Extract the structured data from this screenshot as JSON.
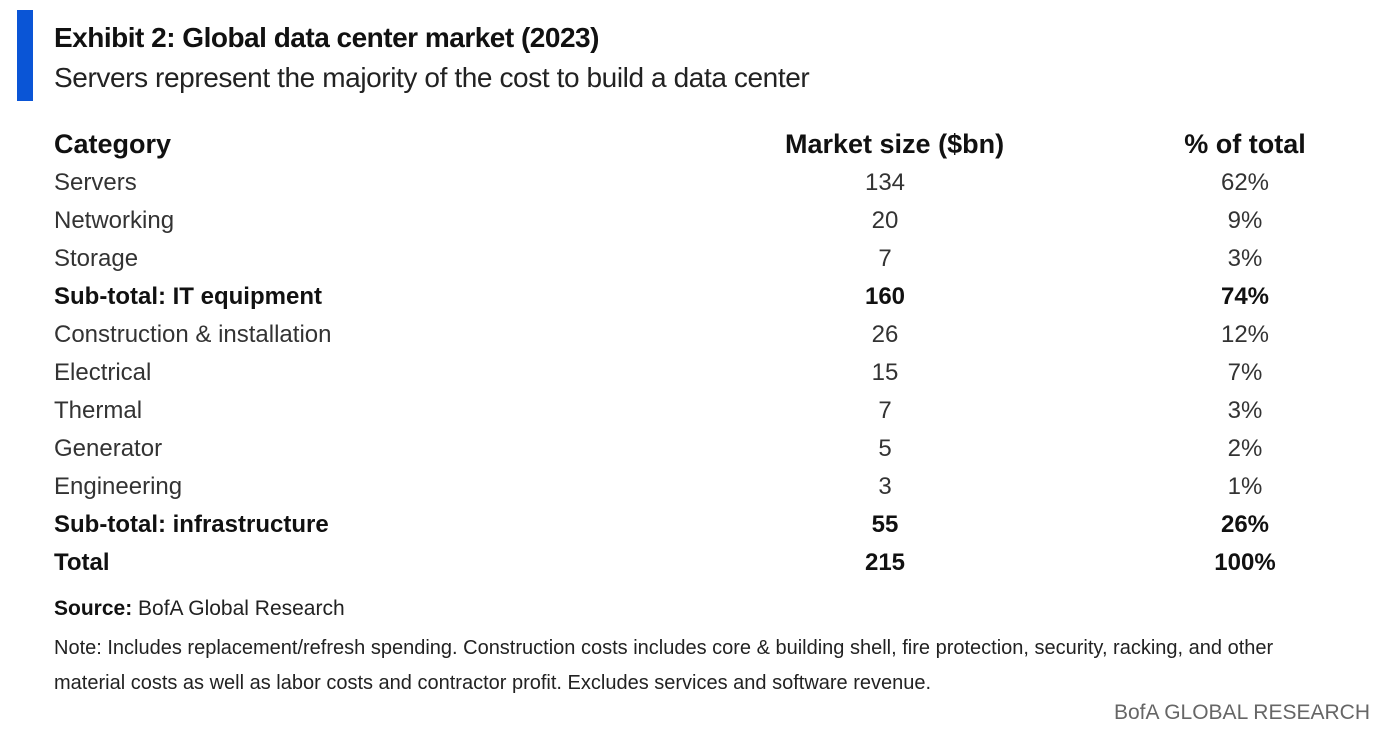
{
  "header": {
    "title": "Exhibit 2: Global data center market (2023)",
    "subtitle": "Servers represent the majority of the cost to build a data center"
  },
  "table": {
    "columns": [
      "Category",
      "Market size ($bn)",
      "% of total"
    ],
    "rows": [
      [
        "Servers",
        "134",
        "62%"
      ],
      [
        "Networking",
        "20",
        "9%"
      ],
      [
        "Storage",
        "7",
        "3%"
      ],
      [
        "Sub-total: IT equipment",
        "160",
        "74%"
      ],
      [
        "Construction & installation",
        "26",
        "12%"
      ],
      [
        "Electrical",
        "15",
        "7%"
      ],
      [
        "Thermal",
        "7",
        "3%"
      ],
      [
        "Generator",
        "5",
        "2%"
      ],
      [
        "Engineering",
        "3",
        "1%"
      ],
      [
        "Sub-total: infrastructure",
        "55",
        "26%"
      ],
      [
        "Total",
        "215",
        "100%"
      ]
    ]
  },
  "footer": {
    "source_label": "Source:",
    "source": "BofA Global Research",
    "note": "Note: Includes replacement/refresh spending. Construction costs includes core & building shell, fire protection, security, racking, and other material costs as well as labor costs and contractor profit. Excludes services and software revenue.",
    "brand": "BofA GLOBAL RESEARCH"
  }
}
